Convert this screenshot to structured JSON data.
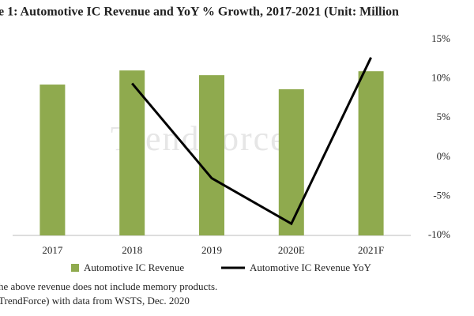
{
  "chart_data": {
    "type": "bar-line",
    "title": "e 1: Automotive IC Revenue and YoY % Growth, 2017-2021 (Unit: Million",
    "watermark": "TrendForce",
    "categories": [
      "2017",
      "2018",
      "2019",
      "2020E",
      "2021F"
    ],
    "series": [
      {
        "name": "Automotive IC Revenue",
        "type": "bar",
        "color": "#8faa4e",
        "values": [
          38500,
          42100,
          40900,
          37300,
          41900
        ]
      },
      {
        "name": "Automotive IC Revenue YoY",
        "type": "line",
        "axis": "y2",
        "color": "#000000",
        "values": [
          null,
          9.4,
          -2.7,
          -8.5,
          12.7
        ]
      }
    ],
    "ylim": [
      0,
      50000
    ],
    "y2lim": [
      -10,
      15
    ],
    "y2ticks": [
      {
        "value": 15,
        "label": "15%"
      },
      {
        "value": 10,
        "label": "10%"
      },
      {
        "value": 5,
        "label": "5%"
      },
      {
        "value": 0,
        "label": "0%"
      },
      {
        "value": -5,
        "label": "-5%"
      },
      {
        "value": -10,
        "label": "-10%"
      }
    ],
    "notes": [
      "he above revenue does not include memory products.",
      "TrendForce) with data from WSTS, Dec. 2020"
    ]
  }
}
